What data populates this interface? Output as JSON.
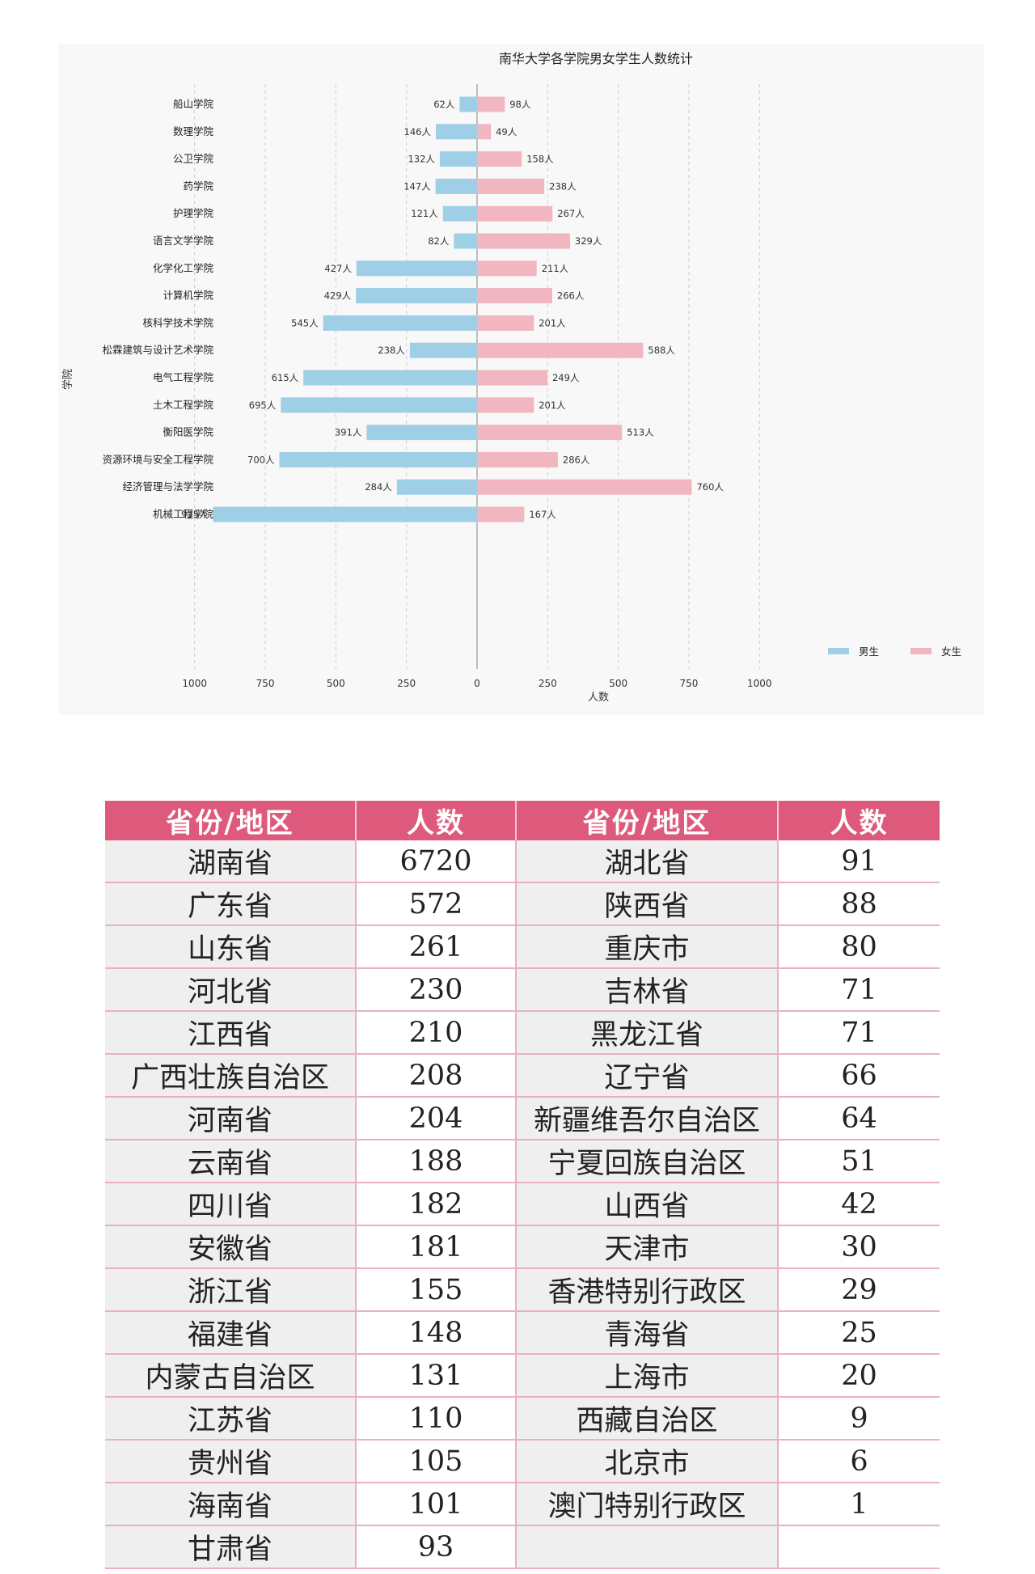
{
  "chart_data": {
    "type": "bar",
    "orientation": "horizontal-diverging",
    "title": "南华大学各学院男女学生人数统计",
    "xlabel": "人数",
    "ylabel": "学院",
    "xlim": [
      -1000,
      1000
    ],
    "xticks": [
      -1000,
      -750,
      -500,
      -250,
      0,
      250,
      500,
      750,
      1000
    ],
    "xtick_labels": [
      "1000",
      "750",
      "500",
      "250",
      "0",
      "250",
      "500",
      "750",
      "1000"
    ],
    "grid": "vertical-dashed",
    "legend_position": "bottom-right",
    "value_suffix": "人",
    "categories": [
      "船山学院",
      "数理学院",
      "公卫学院",
      "药学院",
      "护理学院",
      "语言文学学院",
      "化学化工学院",
      "计算机学院",
      "核科学技术学院",
      "松霖建筑与设计艺术学院",
      "电气工程学院",
      "土木工程学院",
      "衡阳医学院",
      "资源环境与安全工程学院",
      "经济管理与法学学院",
      "机械工程学院"
    ],
    "series": [
      {
        "name": "男生",
        "color": "#9fcfe6",
        "values": [
          62,
          146,
          132,
          147,
          121,
          82,
          427,
          429,
          545,
          238,
          615,
          695,
          391,
          700,
          284,
          935
        ]
      },
      {
        "name": "女生",
        "color": "#f2b6c0",
        "values": [
          98,
          49,
          158,
          238,
          267,
          329,
          211,
          266,
          201,
          588,
          249,
          201,
          513,
          286,
          760,
          167
        ]
      }
    ]
  },
  "table": {
    "header_color": "#dd5a7d",
    "headers": [
      "省份/地区",
      "人数",
      "省份/地区",
      "人数"
    ],
    "rows": [
      [
        "湖南省",
        "6720",
        "湖北省",
        "91"
      ],
      [
        "广东省",
        "572",
        "陕西省",
        "88"
      ],
      [
        "山东省",
        "261",
        "重庆市",
        "80"
      ],
      [
        "河北省",
        "230",
        "吉林省",
        "71"
      ],
      [
        "江西省",
        "210",
        "黑龙江省",
        "71"
      ],
      [
        "广西壮族自治区",
        "208",
        "辽宁省",
        "66"
      ],
      [
        "河南省",
        "204",
        "新疆维吾尔自治区",
        "64"
      ],
      [
        "云南省",
        "188",
        "宁夏回族自治区",
        "51"
      ],
      [
        "四川省",
        "182",
        "山西省",
        "42"
      ],
      [
        "安徽省",
        "181",
        "天津市",
        "30"
      ],
      [
        "浙江省",
        "155",
        "香港特别行政区",
        "29"
      ],
      [
        "福建省",
        "148",
        "青海省",
        "25"
      ],
      [
        "内蒙古自治区",
        "131",
        "上海市",
        "20"
      ],
      [
        "江苏省",
        "110",
        "西藏自治区",
        "9"
      ],
      [
        "贵州省",
        "105",
        "北京市",
        "6"
      ],
      [
        "海南省",
        "101",
        "澳门特别行政区",
        "1"
      ],
      [
        "甘肃省",
        "93",
        "",
        ""
      ]
    ]
  }
}
